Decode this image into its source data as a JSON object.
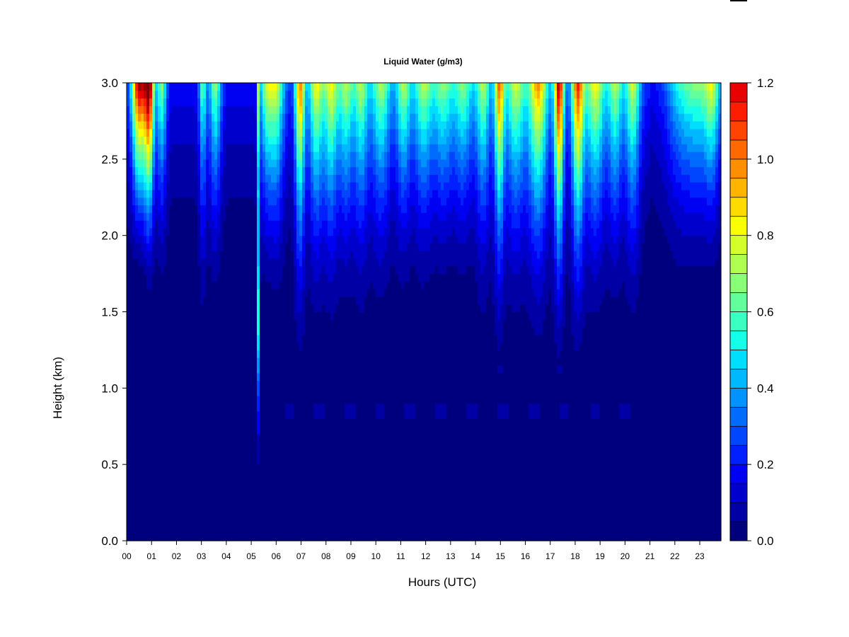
{
  "chart_data": {
    "type": "heatmap",
    "title": "Liquid Water (g/m3)",
    "xlabel": "Hours (UTC)",
    "ylabel": "Height (km)",
    "xlim": [
      0,
      23.85
    ],
    "ylim": [
      0,
      3.0
    ],
    "x_ticks": [
      "00",
      "01",
      "02",
      "03",
      "04",
      "05",
      "06",
      "07",
      "08",
      "09",
      "10",
      "11",
      "12",
      "13",
      "14",
      "15",
      "16",
      "17",
      "18",
      "19",
      "20",
      "21",
      "22",
      "23"
    ],
    "y_ticks": [
      "0.0",
      "0.5",
      "1.0",
      "1.5",
      "2.0",
      "2.5",
      "3.0"
    ],
    "colorbar": {
      "min": 0.0,
      "max": 1.2,
      "step": 0.05,
      "tick_labels": [
        "0.0",
        "0.2",
        "0.4",
        "0.6",
        "0.8",
        "1.0",
        "1.2"
      ],
      "colors": [
        "#00007F",
        "#0000A5",
        "#0000CC",
        "#0000F2",
        "#0020FF",
        "#0046FF",
        "#006CFF",
        "#0092FF",
        "#00B8FF",
        "#00DEFF",
        "#16FFE8",
        "#3CFFC2",
        "#62FF9C",
        "#88FF76",
        "#AEFF50",
        "#D4FF2A",
        "#FAFF04",
        "#FFDB00",
        "#FFB500",
        "#FF8F00",
        "#FF6900",
        "#FF4300",
        "#FF1D00",
        "#E90000",
        "#C30000",
        "#9D0000",
        "#7F0000"
      ]
    },
    "events": [
      {
        "hour": 0.5,
        "width": 0.3,
        "peak": 1.1,
        "reach": 2.5
      },
      {
        "hour": 0.9,
        "width": 0.2,
        "peak": 1.1,
        "reach": 2.3
      },
      {
        "hour": 1.4,
        "width": 0.2,
        "peak": 0.5,
        "reach": 2.3
      },
      {
        "hour": 3.05,
        "width": 0.15,
        "peak": 0.45,
        "reach": 2.0
      },
      {
        "hour": 3.55,
        "width": 0.25,
        "peak": 0.5,
        "reach": 2.2
      },
      {
        "hour": 5.3,
        "width": 0.06,
        "peak": 0.5,
        "reach": 0.8
      },
      {
        "hour": 5.6,
        "width": 0.25,
        "peak": 0.5,
        "reach": 2.3
      },
      {
        "hour": 6.0,
        "width": 0.3,
        "peak": 0.6,
        "reach": 2.2
      },
      {
        "hour": 6.95,
        "width": 0.2,
        "peak": 0.8,
        "reach": 1.8
      },
      {
        "hour": 7.6,
        "width": 0.3,
        "peak": 0.6,
        "reach": 2.0
      },
      {
        "hour": 8.2,
        "width": 0.3,
        "peak": 0.6,
        "reach": 2.0
      },
      {
        "hour": 8.8,
        "width": 0.3,
        "peak": 0.5,
        "reach": 2.1
      },
      {
        "hour": 9.4,
        "width": 0.3,
        "peak": 0.5,
        "reach": 2.0
      },
      {
        "hour": 10.2,
        "width": 0.4,
        "peak": 0.5,
        "reach": 2.1
      },
      {
        "hour": 11.1,
        "width": 0.3,
        "peak": 0.5,
        "reach": 2.2
      },
      {
        "hour": 11.9,
        "width": 0.4,
        "peak": 0.5,
        "reach": 2.2
      },
      {
        "hour": 12.7,
        "width": 0.4,
        "peak": 0.45,
        "reach": 2.3
      },
      {
        "hour": 13.5,
        "width": 0.4,
        "peak": 0.45,
        "reach": 2.3
      },
      {
        "hour": 14.3,
        "width": 0.3,
        "peak": 0.5,
        "reach": 2.0
      },
      {
        "hour": 14.95,
        "width": 0.2,
        "peak": 0.8,
        "reach": 1.8
      },
      {
        "hour": 15.6,
        "width": 0.4,
        "peak": 0.55,
        "reach": 2.0
      },
      {
        "hour": 16.5,
        "width": 0.4,
        "peak": 0.75,
        "reach": 1.9
      },
      {
        "hour": 17.35,
        "width": 0.2,
        "peak": 1.05,
        "reach": 1.8
      },
      {
        "hour": 18.1,
        "width": 0.25,
        "peak": 0.9,
        "reach": 1.8
      },
      {
        "hour": 18.8,
        "width": 0.4,
        "peak": 0.6,
        "reach": 2.0
      },
      {
        "hour": 19.6,
        "width": 0.3,
        "peak": 0.5,
        "reach": 2.1
      },
      {
        "hour": 20.3,
        "width": 0.3,
        "peak": 0.55,
        "reach": 2.0
      },
      {
        "hour": 22.2,
        "width": 0.6,
        "peak": 0.3,
        "reach": 2.3
      },
      {
        "hour": 23.0,
        "width": 0.6,
        "peak": 0.4,
        "reach": 2.4
      },
      {
        "hour": 23.5,
        "width": 0.3,
        "peak": 0.4,
        "reach": 2.4
      }
    ]
  }
}
